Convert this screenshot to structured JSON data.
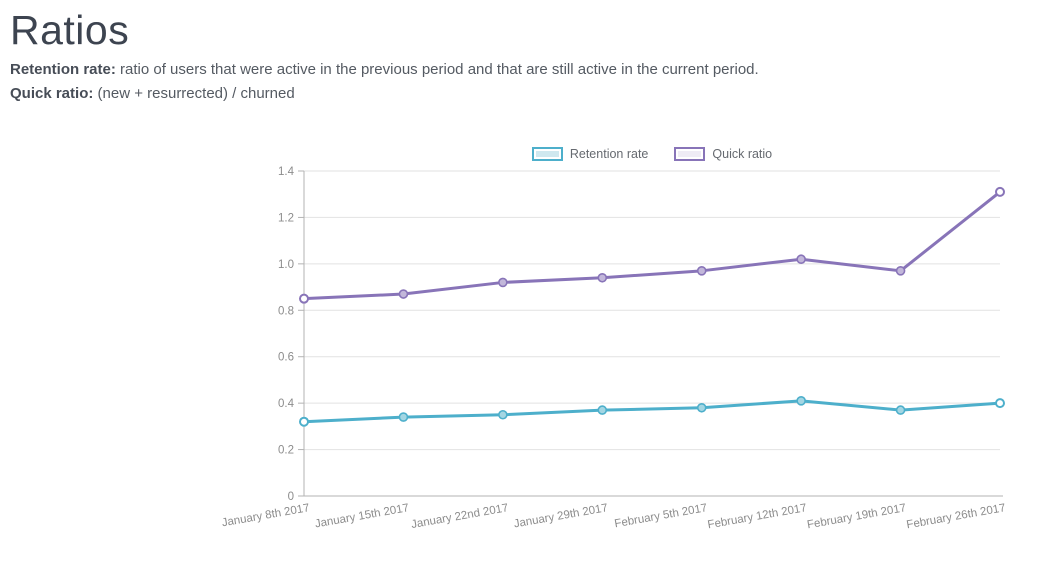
{
  "page": {
    "title": "Ratios",
    "descriptions": [
      {
        "label": "Retention rate:",
        "text": " ratio of users that were active in the previous period and that are still active in the current period."
      },
      {
        "label": "Quick ratio:",
        "text": " (new + resurrected) / churned"
      }
    ]
  },
  "legend": [
    {
      "label": "Retention rate",
      "stroke": "#4dafcb",
      "fill": "#cfe8ef"
    },
    {
      "label": "Quick ratio",
      "stroke": "#8874b8",
      "fill": "#efecf5"
    }
  ],
  "chart_data": {
    "type": "line",
    "x": [
      "January 8th 2017",
      "January 15th 2017",
      "January 22nd 2017",
      "January 29th 2017",
      "February 5th 2017",
      "February 12th 2017",
      "February 19th 2017",
      "February 26th 2017"
    ],
    "series": [
      {
        "name": "Retention rate",
        "color": "#4dafcb",
        "marker_fill": "#a3d6e3",
        "values": [
          0.32,
          0.34,
          0.35,
          0.37,
          0.38,
          0.41,
          0.37,
          0.4
        ]
      },
      {
        "name": "Quick ratio",
        "color": "#8874b8",
        "marker_fill": "#c2b7da",
        "values": [
          0.85,
          0.87,
          0.92,
          0.94,
          0.97,
          1.02,
          0.97,
          1.31
        ]
      }
    ],
    "ylim": [
      0,
      1.4
    ],
    "ytick_step": 0.2,
    "ytick_labels": [
      "0",
      "0.2",
      "0.4",
      "0.6",
      "0.8",
      "1.0",
      "1.2",
      "1.4"
    ],
    "grid": "horizontal",
    "legend_position": "top-center",
    "title": "Ratios",
    "xlabel": "",
    "ylabel": ""
  },
  "style": {
    "grid_color": "#e2e2e2",
    "axis_color": "#b3b3b3",
    "tick_label_color": "#8c8c8c",
    "background": "#ffffff"
  }
}
